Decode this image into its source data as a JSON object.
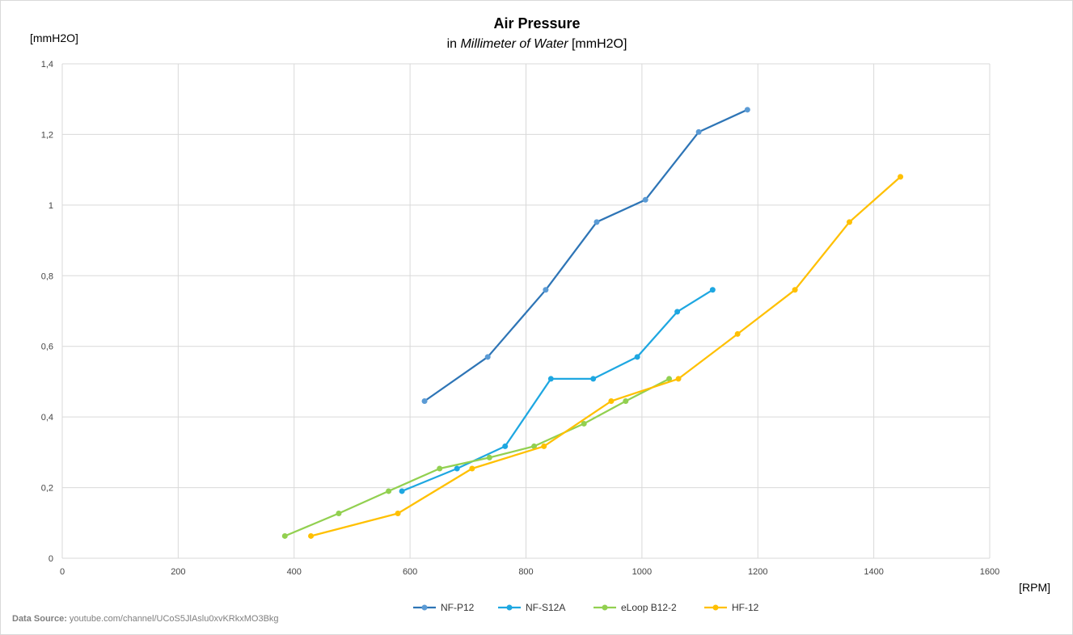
{
  "chart_data": {
    "type": "line",
    "title": "Air Pressure",
    "subtitle_prefix": "in ",
    "subtitle_italic": "Millimeter of Water",
    "subtitle_suffix": " [mmH2O]",
    "ylabel": "[mmH2O]",
    "xlabel": "[RPM]",
    "xlim": [
      0,
      1600
    ],
    "ylim": [
      0,
      1.4
    ],
    "x_ticks": [
      0,
      200,
      400,
      600,
      800,
      1000,
      1200,
      1400,
      1600
    ],
    "x_tick_labels": [
      "0",
      "200",
      "400",
      "600",
      "800",
      "1000",
      "1200",
      "1400",
      "1600"
    ],
    "y_ticks": [
      0,
      0.2,
      0.4,
      0.6,
      0.8,
      1,
      1.2,
      1.4
    ],
    "y_tick_labels": [
      "0",
      "0,2",
      "0,4",
      "0,6",
      "0,8",
      "1",
      "1,2",
      "1,4"
    ],
    "grid": true,
    "legend_position": "bottom",
    "series": [
      {
        "name": "NF-P12",
        "color": "#2e75b6",
        "marker_color": "#5b9bd5",
        "x": [
          625,
          734,
          834,
          922,
          1006,
          1098,
          1182
        ],
        "y": [
          0.445,
          0.57,
          0.76,
          0.952,
          1.015,
          1.207,
          1.27
        ]
      },
      {
        "name": "NF-S12A",
        "color": "#1ea7e1",
        "marker_color": "#1ea7e1",
        "x": [
          586,
          681,
          764,
          843,
          916,
          992,
          1061,
          1122
        ],
        "y": [
          0.19,
          0.254,
          0.317,
          0.508,
          0.508,
          0.57,
          0.698,
          0.76
        ]
      },
      {
        "name": "eLoop B12-2",
        "color": "#92d050",
        "marker_color": "#92d050",
        "x": [
          384,
          477,
          563,
          651,
          737,
          814,
          900,
          972,
          1047
        ],
        "y": [
          0.063,
          0.127,
          0.19,
          0.254,
          0.285,
          0.317,
          0.381,
          0.445,
          0.508
        ]
      },
      {
        "name": "HF-12",
        "color": "#ffc000",
        "marker_color": "#ffc000",
        "x": [
          429,
          579,
          707,
          831,
          947,
          1063,
          1165,
          1264,
          1358,
          1446
        ],
        "y": [
          0.063,
          0.127,
          0.254,
          0.317,
          0.445,
          0.508,
          0.635,
          0.76,
          0.952,
          1.08
        ]
      }
    ]
  },
  "source": {
    "label": "Data Source:",
    "text": " youtube.com/channel/UCoS5JlAslu0xvKRkxMO3Bkg"
  }
}
